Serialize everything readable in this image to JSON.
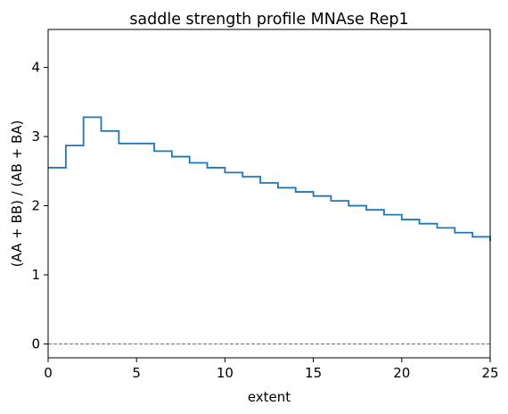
{
  "chart_data": {
    "type": "line",
    "title": "saddle strength profile MNAse Rep1",
    "xlabel": "extent",
    "ylabel": "(AA + BB) / (AB + BA)",
    "xlim": [
      0,
      25
    ],
    "ylim": [
      -0.2,
      4.55
    ],
    "x_ticks": [
      0,
      5,
      10,
      15,
      20,
      25
    ],
    "y_ticks": [
      0,
      1,
      2,
      3,
      4
    ],
    "grid": false,
    "series": [
      {
        "step": "post",
        "color": "#1f77b4",
        "x": [
          0,
          1,
          2,
          3,
          4,
          5,
          6,
          7,
          8,
          9,
          10,
          11,
          12,
          13,
          14,
          15,
          16,
          17,
          18,
          19,
          20,
          21,
          22,
          23,
          24,
          25
        ],
        "values": [
          2.55,
          2.87,
          3.28,
          3.08,
          2.9,
          2.9,
          2.79,
          2.71,
          2.62,
          2.55,
          2.48,
          2.42,
          2.33,
          2.26,
          2.2,
          2.14,
          2.07,
          2.0,
          1.94,
          1.87,
          1.8,
          1.74,
          1.68,
          1.61,
          1.55,
          1.49
        ]
      }
    ],
    "reference_line": {
      "y": 0,
      "style": "dashed",
      "color": "#808080"
    }
  }
}
